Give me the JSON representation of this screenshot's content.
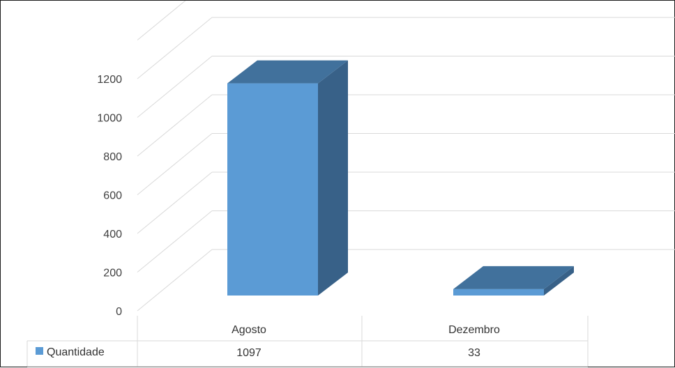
{
  "chart_data": {
    "type": "bar",
    "style": "3d-column-with-data-table",
    "categories": [
      "Agosto",
      "Dezembro"
    ],
    "series": [
      {
        "name": "Quantidade",
        "values": [
          1097,
          33
        ],
        "color": "#5b9bd5"
      }
    ],
    "yticks": [
      "0",
      "200",
      "400",
      "600",
      "800",
      "1000",
      "1200"
    ],
    "ylim": [
      0,
      1400
    ],
    "grid": true,
    "legend": "data-table",
    "table": {
      "legend_label": "Quantidade",
      "values": [
        "1097",
        "33"
      ]
    },
    "colors": {
      "bar_front": "#5b9bd5",
      "bar_top": "#41719c",
      "bar_side": "#386188",
      "grid": "#d9d9d9",
      "text": "#404040"
    }
  }
}
